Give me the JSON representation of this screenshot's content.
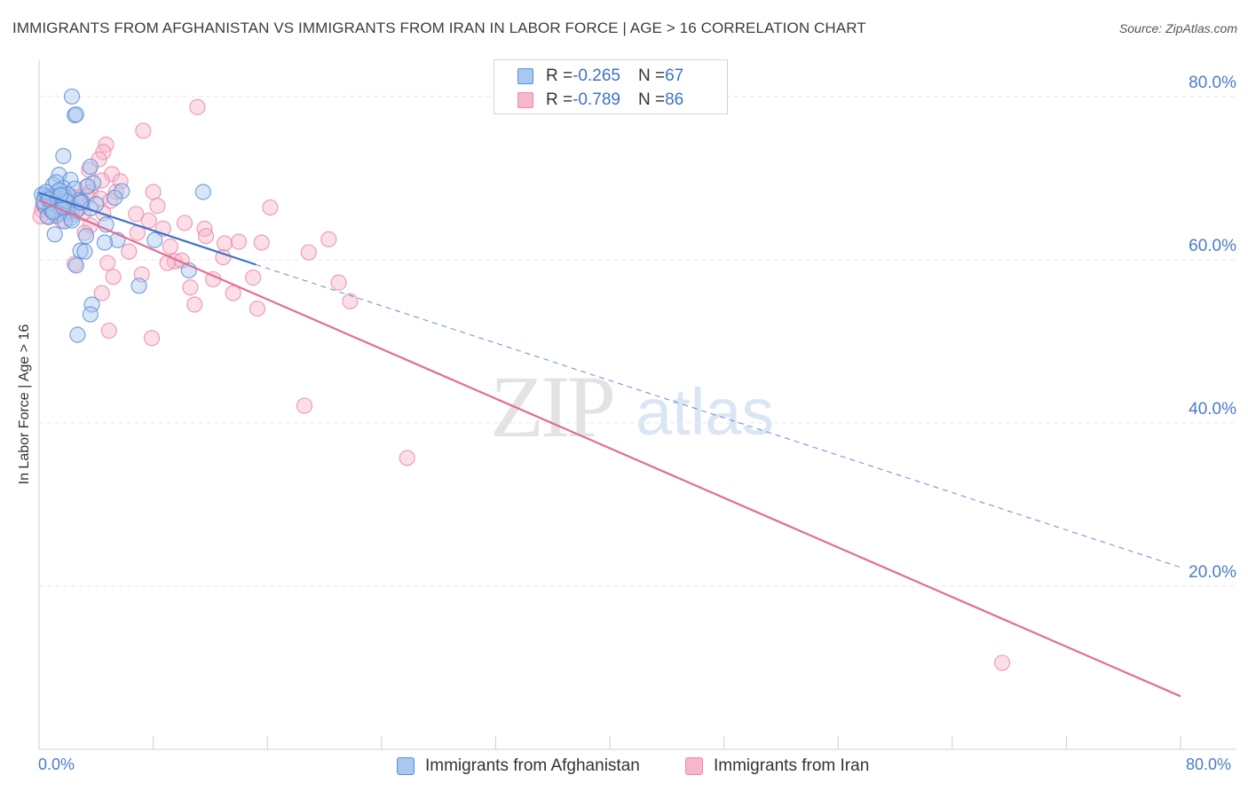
{
  "title": "IMMIGRANTS FROM AFGHANISTAN VS IMMIGRANTS FROM IRAN IN LABOR FORCE | AGE > 16 CORRELATION CHART",
  "source": "Source: ZipAtlas.com",
  "watermark": {
    "zip": "ZIP",
    "atlas": "atlas"
  },
  "colors": {
    "afghanistan_fill": "#a8c8f0",
    "afghanistan_stroke": "#5b8fd6",
    "afghanistan_line": "#3a73c9",
    "iran_fill": "#f7b6cb",
    "iran_stroke": "#e98aa8",
    "iran_line": "#e26d97",
    "axis_label": "#4a7cc9",
    "grid": "#e6e6e6"
  },
  "stats": [
    {
      "r_label": "R = ",
      "r_value": "-0.265",
      "n_label": "N = ",
      "n_value": "67"
    },
    {
      "r_label": "R = ",
      "r_value": "-0.789",
      "n_label": "N = ",
      "n_value": "86"
    }
  ],
  "legend": [
    "Immigrants from Afghanistan",
    "Immigrants from Iran"
  ],
  "chart_data": {
    "type": "scatter",
    "title": "IMMIGRANTS FROM AFGHANISTAN VS IMMIGRANTS FROM IRAN IN LABOR FORCE | AGE > 16 CORRELATION CHART",
    "xlabel": "",
    "ylabel": "In Labor Force | Age > 16",
    "xlim": [
      0,
      80
    ],
    "ylim": [
      0,
      84
    ],
    "x_tick_labels": [
      "0.0%",
      "80.0%"
    ],
    "y_ticks": [
      20,
      40,
      60,
      80
    ],
    "y_tick_labels": [
      "20.0%",
      "40.0%",
      "60.0%",
      "80.0%"
    ],
    "grid": true,
    "series": [
      {
        "name": "Immigrants from Afghanistan",
        "trend": {
          "x_start": 0,
          "y_start": 68.2,
          "x_solid_end": 15.2,
          "y_solid_end": 59.4,
          "x_dash_end": 80,
          "y_dash_end": 22.3
        },
        "points": [
          [
            2.3,
            80.0
          ],
          [
            2.5,
            77.7
          ],
          [
            2.6,
            77.8
          ],
          [
            1.7,
            72.7
          ],
          [
            3.6,
            71.4
          ],
          [
            1.4,
            70.4
          ],
          [
            2.2,
            69.8
          ],
          [
            3.8,
            69.4
          ],
          [
            1.0,
            69.2
          ],
          [
            1.7,
            68.8
          ],
          [
            2.5,
            68.7
          ],
          [
            5.8,
            68.4
          ],
          [
            11.5,
            68.3
          ],
          [
            1.3,
            68.2
          ],
          [
            0.2,
            68.0
          ],
          [
            0.4,
            67.9
          ],
          [
            1.0,
            67.8
          ],
          [
            1.8,
            67.7
          ],
          [
            0.6,
            67.7
          ],
          [
            1.4,
            67.5
          ],
          [
            5.3,
            67.6
          ],
          [
            2.8,
            67.3
          ],
          [
            0.9,
            67.2
          ],
          [
            3.0,
            67.1
          ],
          [
            0.8,
            67.0
          ],
          [
            1.2,
            66.8
          ],
          [
            2.0,
            66.9
          ],
          [
            0.4,
            66.7
          ],
          [
            1.5,
            66.5
          ],
          [
            1.6,
            66.2
          ],
          [
            0.8,
            66.3
          ],
          [
            3.6,
            66.3
          ],
          [
            2.0,
            65.8
          ],
          [
            1.2,
            65.4
          ],
          [
            2.2,
            65.1
          ],
          [
            0.6,
            65.3
          ],
          [
            4.7,
            64.3
          ],
          [
            1.8,
            64.7
          ],
          [
            1.1,
            63.1
          ],
          [
            3.3,
            62.9
          ],
          [
            5.5,
            62.4
          ],
          [
            8.1,
            62.4
          ],
          [
            4.6,
            62.1
          ],
          [
            2.9,
            61.1
          ],
          [
            3.2,
            61.0
          ],
          [
            2.6,
            59.3
          ],
          [
            10.5,
            58.7
          ],
          [
            7.0,
            56.8
          ],
          [
            3.7,
            54.5
          ],
          [
            3.6,
            53.3
          ],
          [
            2.7,
            50.8
          ],
          [
            1.2,
            69.5
          ],
          [
            2.0,
            68.0
          ],
          [
            0.9,
            66.0
          ],
          [
            1.9,
            67.2
          ],
          [
            2.6,
            66.0
          ],
          [
            0.3,
            67.1
          ],
          [
            1.4,
            68.5
          ],
          [
            3.4,
            69.0
          ],
          [
            1.0,
            65.8
          ],
          [
            2.3,
            64.8
          ],
          [
            0.5,
            68.3
          ],
          [
            4.0,
            66.8
          ],
          [
            1.7,
            66.4
          ],
          [
            0.7,
            67.4
          ],
          [
            2.9,
            67.0
          ],
          [
            1.5,
            67.9
          ]
        ]
      },
      {
        "name": "Immigrants from Iran",
        "trend": {
          "x_start": 0,
          "y_start": 67.3,
          "x_end": 80,
          "y_end": 6.5
        },
        "points": [
          [
            11.1,
            78.7
          ],
          [
            7.3,
            75.8
          ],
          [
            4.7,
            74.1
          ],
          [
            4.5,
            73.2
          ],
          [
            4.2,
            72.3
          ],
          [
            3.5,
            71.0
          ],
          [
            5.1,
            70.5
          ],
          [
            4.4,
            69.7
          ],
          [
            5.7,
            69.6
          ],
          [
            3.3,
            68.9
          ],
          [
            3.6,
            68.3
          ],
          [
            8.0,
            68.3
          ],
          [
            5.4,
            68.3
          ],
          [
            2.6,
            67.7
          ],
          [
            3.4,
            67.8
          ],
          [
            1.7,
            67.6
          ],
          [
            2.5,
            67.5
          ],
          [
            4.3,
            67.5
          ],
          [
            5.0,
            67.2
          ],
          [
            8.3,
            66.6
          ],
          [
            16.2,
            66.4
          ],
          [
            1.2,
            66.1
          ],
          [
            2.0,
            66.1
          ],
          [
            0.2,
            66.1
          ],
          [
            3.1,
            65.7
          ],
          [
            4.5,
            65.7
          ],
          [
            6.8,
            65.6
          ],
          [
            0.7,
            65.2
          ],
          [
            1.6,
            64.8
          ],
          [
            7.7,
            64.8
          ],
          [
            10.2,
            64.5
          ],
          [
            3.6,
            64.2
          ],
          [
            11.6,
            63.8
          ],
          [
            8.7,
            63.8
          ],
          [
            6.9,
            63.3
          ],
          [
            3.2,
            63.3
          ],
          [
            11.7,
            62.9
          ],
          [
            20.3,
            62.5
          ],
          [
            13.0,
            62.0
          ],
          [
            14.0,
            62.2
          ],
          [
            15.6,
            62.1
          ],
          [
            9.2,
            61.6
          ],
          [
            6.3,
            61.0
          ],
          [
            18.9,
            60.9
          ],
          [
            12.9,
            60.3
          ],
          [
            9.5,
            59.8
          ],
          [
            10.0,
            59.9
          ],
          [
            9.0,
            59.6
          ],
          [
            4.8,
            59.6
          ],
          [
            2.5,
            59.5
          ],
          [
            5.2,
            57.9
          ],
          [
            7.2,
            58.2
          ],
          [
            12.2,
            57.6
          ],
          [
            15.0,
            57.8
          ],
          [
            10.6,
            56.6
          ],
          [
            21.0,
            57.2
          ],
          [
            4.4,
            55.9
          ],
          [
            13.6,
            55.9
          ],
          [
            21.8,
            54.9
          ],
          [
            10.9,
            54.5
          ],
          [
            15.3,
            54.0
          ],
          [
            4.9,
            51.3
          ],
          [
            7.9,
            50.4
          ],
          [
            18.6,
            42.1
          ],
          [
            25.8,
            35.7
          ],
          [
            67.5,
            10.6
          ],
          [
            0.5,
            67.0
          ],
          [
            1.0,
            67.8
          ],
          [
            1.4,
            65.7
          ],
          [
            0.8,
            66.8
          ],
          [
            2.1,
            66.6
          ],
          [
            1.8,
            67.2
          ],
          [
            0.4,
            66.4
          ],
          [
            1.3,
            67.5
          ],
          [
            2.8,
            66.3
          ],
          [
            0.9,
            65.9
          ],
          [
            3.0,
            67.0
          ],
          [
            1.9,
            66.0
          ],
          [
            0.6,
            67.6
          ],
          [
            2.3,
            65.6
          ],
          [
            1.1,
            66.9
          ],
          [
            2.7,
            67.3
          ],
          [
            0.3,
            66.7
          ],
          [
            1.6,
            66.2
          ],
          [
            2.2,
            67.8
          ],
          [
            0.1,
            65.3
          ]
        ]
      }
    ]
  }
}
